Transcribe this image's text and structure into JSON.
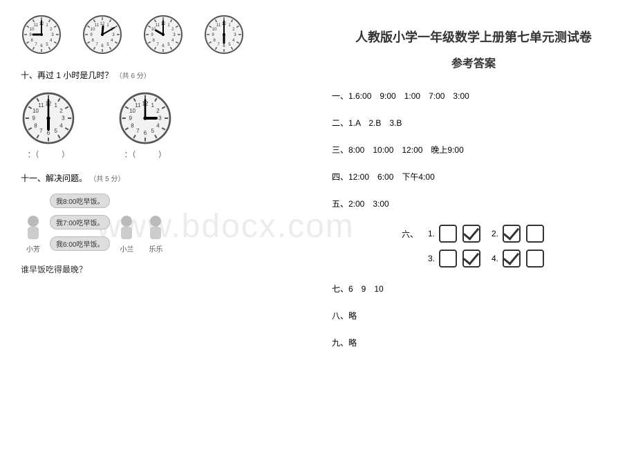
{
  "watermark": "www.bdocx.com",
  "left": {
    "clocks_top": [
      {
        "hour": 9,
        "minute": 0
      },
      {
        "hour": 12,
        "minute": 10
      },
      {
        "hour": 10,
        "minute": 0
      },
      {
        "hour": 6,
        "minute": 0
      }
    ],
    "q10": {
      "title": "十、再过 1 小时是几时？",
      "points": "（共 6 分）",
      "items": [
        {
          "hour": 6,
          "minute": 0,
          "label": "：（　　　）"
        },
        {
          "hour": 3,
          "minute": 0,
          "label": "：（　　　）"
        }
      ]
    },
    "q11": {
      "title": "十一、解决问题。",
      "points": "（共 5 分）",
      "bubbles": [
        "我8:00吃早饭。",
        "我7:00吃早饭。",
        "我6:00吃早饭。"
      ],
      "kids": [
        "小芳",
        "小兰",
        "乐乐"
      ],
      "question": "谁早饭吃得最晚？"
    }
  },
  "right": {
    "title": "人教版小学一年级数学上册第七单元测试卷",
    "subtitle": "参考答案",
    "answers": {
      "a1": "一、1.6:00　9:00　1:00　7:00　3:00",
      "a2": "二、1.A　2.B　3.B",
      "a3": "三、8:00　10:00　12:00　晚上9:00",
      "a4": "四、12:00　6:00　下午4:00",
      "a5": "五、2:00　3:00",
      "a6_label": "六、",
      "a6": [
        {
          "num": "1.",
          "boxes": [
            false,
            true
          ]
        },
        {
          "num": "2.",
          "boxes": [
            true,
            false
          ]
        },
        {
          "num": "3.",
          "boxes": [
            false,
            true
          ]
        },
        {
          "num": "4.",
          "boxes": [
            true,
            false
          ]
        }
      ],
      "a7": "七、6　9　10",
      "a8": "八、略",
      "a9": "九、略"
    }
  }
}
